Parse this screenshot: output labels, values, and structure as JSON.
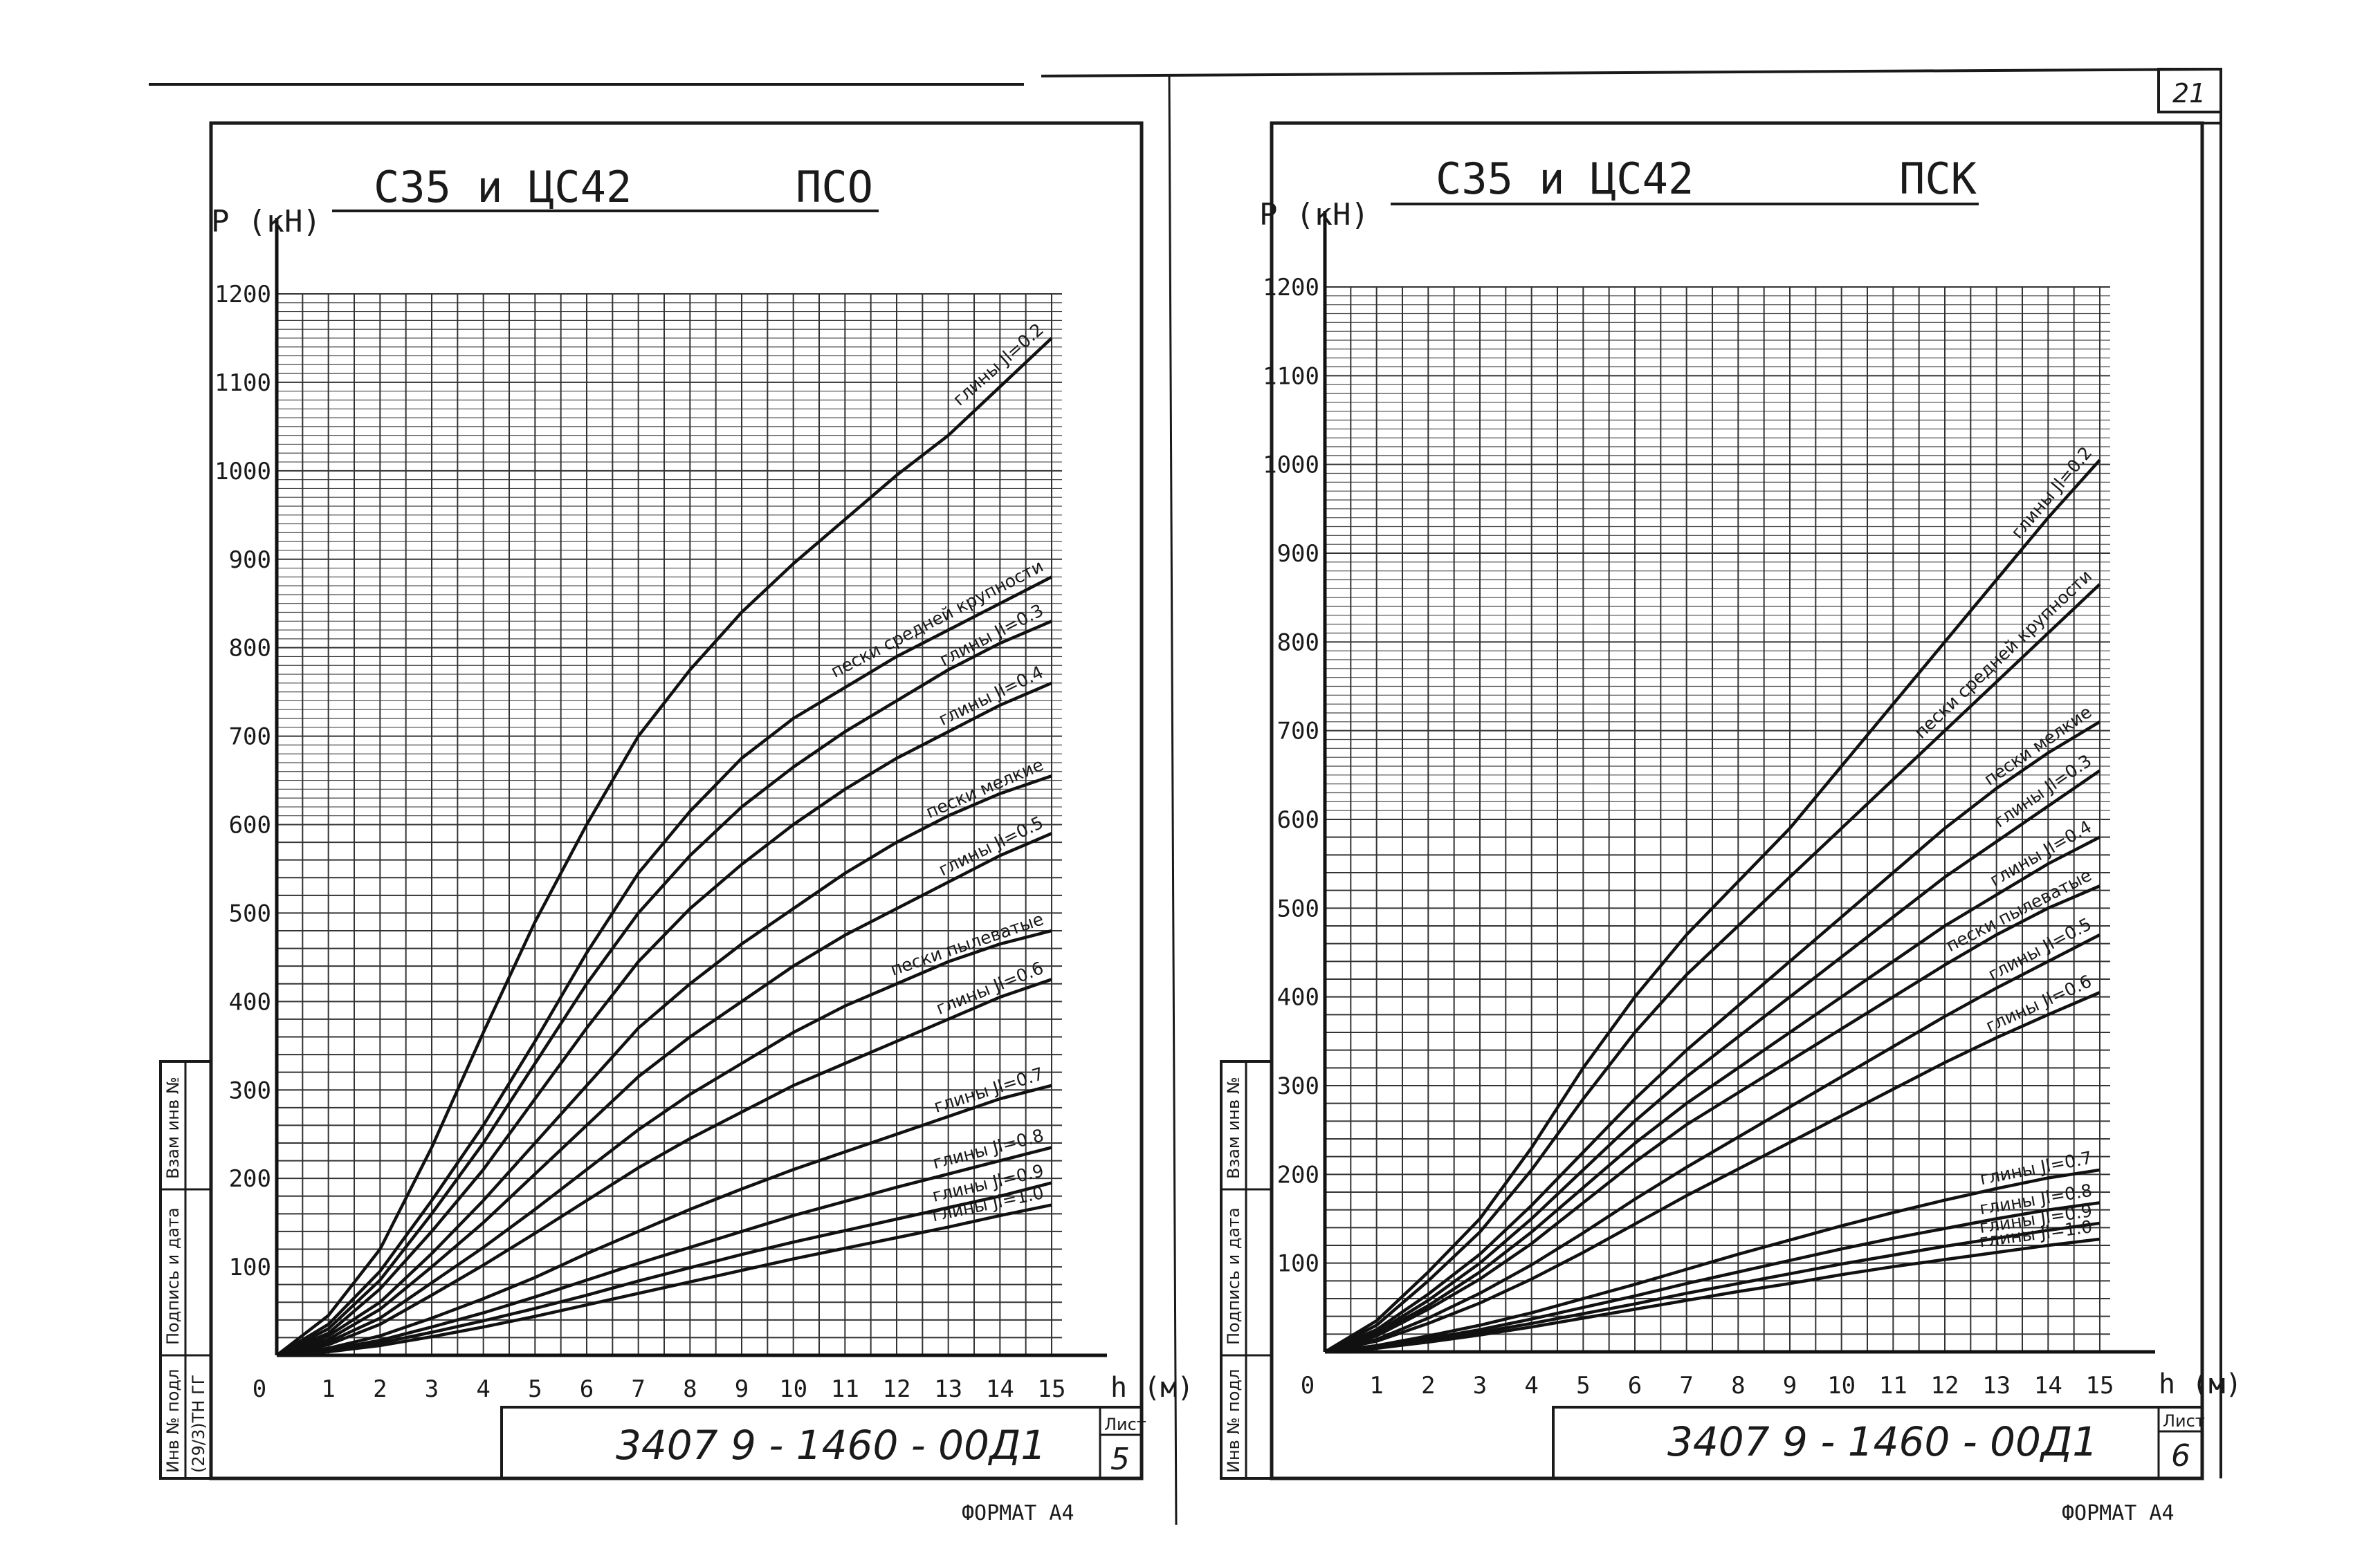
{
  "page_number": "21",
  "format_label": "ФОРМАТ А4",
  "side_stamp": {
    "inv_no": "Инв № подл",
    "sign_date": "Подпись и дата",
    "vzam": "Взам инв №",
    "handwritten": "(29/3)ТН ГГ"
  },
  "sheets": [
    {
      "title_left": "С35 и ЦС42",
      "title_right": "ПСО",
      "doc_code": "3407 9 - 1460 - 00Д1",
      "sheet_label": "Лист",
      "sheet_number": "5"
    },
    {
      "title_left": "С35 и ЦС42",
      "title_right": "ПСК",
      "doc_code": "3407 9 - 1460 - 00Д1",
      "sheet_label": "Лист",
      "sheet_number": "6"
    }
  ],
  "chart_data": [
    {
      "type": "line",
      "title": "С35 и ЦС42 ПСО",
      "ylabel": "P (кН)",
      "xlabel": "h (м)",
      "x_ticks": [
        0,
        1,
        2,
        3,
        4,
        5,
        6,
        7,
        8,
        9,
        10,
        11,
        12,
        13,
        14,
        15
      ],
      "y_ticks": [
        100,
        200,
        300,
        400,
        500,
        600,
        700,
        800,
        900,
        1000,
        1100,
        1200
      ],
      "xlim": [
        0,
        15
      ],
      "ylim": [
        0,
        1200
      ],
      "grid": true,
      "x": [
        0,
        1,
        2,
        3,
        4,
        5,
        6,
        7,
        8,
        9,
        10,
        11,
        12,
        13,
        14,
        15
      ],
      "series": [
        {
          "name": "глины Jl=0.2",
          "values": [
            0,
            45,
            120,
            235,
            365,
            490,
            600,
            700,
            775,
            840,
            895,
            945,
            995,
            1040,
            1095,
            1150
          ]
        },
        {
          "name": "пески средней крупности",
          "values": [
            0,
            35,
            95,
            175,
            260,
            355,
            455,
            545,
            615,
            675,
            720,
            755,
            790,
            820,
            850,
            880
          ]
        },
        {
          "name": "глины Jl=0.3",
          "values": [
            0,
            30,
            85,
            160,
            240,
            330,
            420,
            500,
            565,
            620,
            665,
            705,
            740,
            775,
            805,
            830
          ]
        },
        {
          "name": "глины Jl=0.4",
          "values": [
            0,
            25,
            75,
            140,
            210,
            290,
            370,
            445,
            505,
            555,
            600,
            640,
            675,
            705,
            735,
            760
          ]
        },
        {
          "name": "пески мелкие",
          "values": [
            0,
            22,
            60,
            115,
            175,
            240,
            305,
            370,
            420,
            465,
            505,
            545,
            580,
            610,
            635,
            655
          ]
        },
        {
          "name": "глины Jl=0.5",
          "values": [
            0,
            18,
            52,
            100,
            150,
            205,
            260,
            315,
            360,
            400,
            440,
            475,
            505,
            535,
            565,
            590
          ]
        },
        {
          "name": "пески пылеватые",
          "values": [
            0,
            15,
            42,
            82,
            122,
            165,
            210,
            255,
            295,
            330,
            365,
            395,
            420,
            445,
            465,
            480
          ]
        },
        {
          "name": "глины Jl=0.6",
          "values": [
            0,
            12,
            35,
            68,
            102,
            138,
            175,
            212,
            245,
            275,
            305,
            330,
            355,
            380,
            405,
            425
          ]
        },
        {
          "name": "глины Jl=0.7",
          "values": [
            0,
            8,
            22,
            42,
            64,
            88,
            115,
            140,
            165,
            188,
            210,
            230,
            250,
            270,
            290,
            305
          ]
        },
        {
          "name": "глины Jl=0.8",
          "values": [
            0,
            6,
            17,
            32,
            48,
            66,
            85,
            104,
            122,
            140,
            158,
            174,
            190,
            205,
            220,
            235
          ]
        },
        {
          "name": "глины Jl=0.9",
          "values": [
            0,
            5,
            14,
            26,
            39,
            53,
            68,
            84,
            99,
            114,
            128,
            141,
            154,
            167,
            180,
            195
          ]
        },
        {
          "name": "глины Jl=1.0",
          "values": [
            0,
            4,
            11,
            21,
            32,
            44,
            57,
            70,
            83,
            96,
            109,
            121,
            133,
            145,
            158,
            170
          ]
        }
      ]
    },
    {
      "type": "line",
      "title": "С35 и ЦС42 ПСК",
      "ylabel": "P (кН)",
      "xlabel": "h (м)",
      "x_ticks": [
        0,
        1,
        2,
        3,
        4,
        5,
        6,
        7,
        8,
        9,
        10,
        11,
        12,
        13,
        14,
        15
      ],
      "y_ticks": [
        100,
        200,
        300,
        400,
        500,
        600,
        700,
        800,
        900,
        1000,
        1100,
        1200
      ],
      "xlim": [
        0,
        15
      ],
      "ylim": [
        0,
        1200
      ],
      "grid": true,
      "x": [
        0,
        1,
        2,
        3,
        4,
        5,
        6,
        7,
        8,
        9,
        10,
        11,
        12,
        13,
        14,
        15
      ],
      "series": [
        {
          "name": "глины Jl=0.2",
          "values": [
            0,
            35,
            90,
            150,
            230,
            320,
            400,
            470,
            530,
            590,
            660,
            730,
            800,
            870,
            940,
            1005
          ]
        },
        {
          "name": "пески средней крупности",
          "values": [
            0,
            30,
            80,
            135,
            205,
            285,
            360,
            425,
            480,
            535,
            590,
            645,
            700,
            755,
            810,
            865
          ]
        },
        {
          "name": "пески мелкие",
          "values": [
            0,
            25,
            65,
            110,
            165,
            225,
            285,
            340,
            390,
            440,
            490,
            540,
            590,
            635,
            675,
            710
          ]
        },
        {
          "name": "глины Jl=0.3",
          "values": [
            0,
            22,
            58,
            100,
            150,
            205,
            260,
            310,
            355,
            400,
            445,
            490,
            535,
            575,
            615,
            655
          ]
        },
        {
          "name": "глины Jl=0.4",
          "values": [
            0,
            20,
            52,
            90,
            135,
            185,
            235,
            280,
            320,
            360,
            400,
            440,
            480,
            515,
            550,
            580
          ]
        },
        {
          "name": "пески пылеватые",
          "values": [
            0,
            18,
            48,
            82,
            122,
            168,
            214,
            256,
            292,
            328,
            364,
            400,
            436,
            470,
            500,
            525
          ]
        },
        {
          "name": "глины Jl=0.5",
          "values": [
            0,
            14,
            38,
            66,
            98,
            134,
            172,
            208,
            242,
            276,
            310,
            344,
            378,
            410,
            440,
            470
          ]
        },
        {
          "name": "глины Jl=0.6",
          "values": [
            0,
            12,
            32,
            55,
            82,
            112,
            144,
            176,
            206,
            236,
            266,
            296,
            326,
            354,
            380,
            405
          ]
        },
        {
          "name": "глины Jl=0.7",
          "values": [
            0,
            7,
            18,
            30,
            44,
            60,
            76,
            93,
            110,
            126,
            142,
            157,
            171,
            184,
            196,
            205
          ]
        },
        {
          "name": "глины Jl=0.8",
          "values": [
            0,
            6,
            15,
            25,
            37,
            50,
            63,
            77,
            90,
            103,
            116,
            128,
            139,
            150,
            160,
            168
          ]
        },
        {
          "name": "глины Jl=0.9",
          "values": [
            0,
            5,
            13,
            22,
            32,
            43,
            54,
            66,
            77,
            88,
            99,
            109,
            119,
            128,
            137,
            145
          ]
        },
        {
          "name": "глины Jl=1.0",
          "values": [
            0,
            4,
            11,
            19,
            28,
            38,
            48,
            58,
            68,
            77,
            87,
            96,
            104,
            112,
            120,
            127
          ]
        }
      ]
    }
  ]
}
